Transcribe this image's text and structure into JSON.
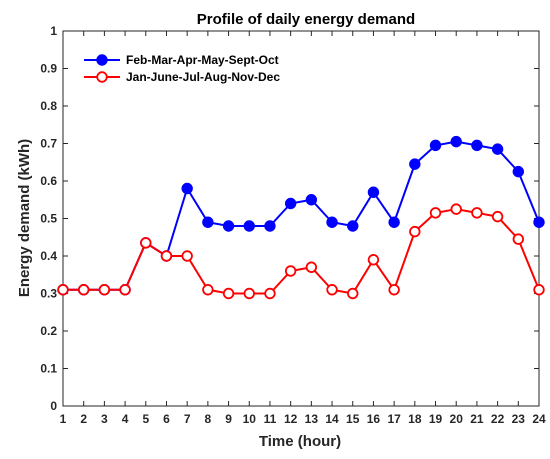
{
  "chart_data": {
    "type": "line",
    "title": "Profile of daily energy demand",
    "xlabel": "Time (hour)",
    "ylabel": "Energy demand (kWh)",
    "x": [
      1,
      2,
      3,
      4,
      5,
      6,
      7,
      8,
      9,
      10,
      11,
      12,
      13,
      14,
      15,
      16,
      17,
      18,
      19,
      20,
      21,
      22,
      23,
      24
    ],
    "xlim": [
      1,
      24
    ],
    "ylim": [
      0,
      1
    ],
    "xticks": [
      "1",
      "2",
      "3",
      "4",
      "5",
      "6",
      "7",
      "8",
      "9",
      "10",
      "11",
      "12",
      "13",
      "14",
      "15",
      "16",
      "17",
      "18",
      "19",
      "20",
      "21",
      "22",
      "23",
      "24"
    ],
    "yticks": [
      "0",
      "0.1",
      "0.2",
      "0.3",
      "0.4",
      "0.5",
      "0.6",
      "0.7",
      "0.8",
      "0.9",
      "1"
    ],
    "grid": false,
    "legend_position": "top-left",
    "series": [
      {
        "name": "Feb-Mar-Apr-May-Sept-Oct",
        "color": "#0000ff",
        "marker": "filled-circle",
        "values": [
          0.31,
          0.31,
          0.31,
          0.31,
          0.435,
          0.4,
          0.58,
          0.49,
          0.48,
          0.48,
          0.48,
          0.54,
          0.55,
          0.49,
          0.48,
          0.57,
          0.49,
          0.645,
          0.695,
          0.705,
          0.695,
          0.685,
          0.625,
          0.49
        ]
      },
      {
        "name": "Jan-June-Jul-Aug-Nov-Dec",
        "color": "#ff0000",
        "marker": "open-circle",
        "values": [
          0.31,
          0.31,
          0.31,
          0.31,
          0.435,
          0.4,
          0.4,
          0.31,
          0.3,
          0.3,
          0.3,
          0.36,
          0.37,
          0.31,
          0.3,
          0.39,
          0.31,
          0.465,
          0.515,
          0.525,
          0.515,
          0.505,
          0.445,
          0.31
        ]
      }
    ]
  }
}
